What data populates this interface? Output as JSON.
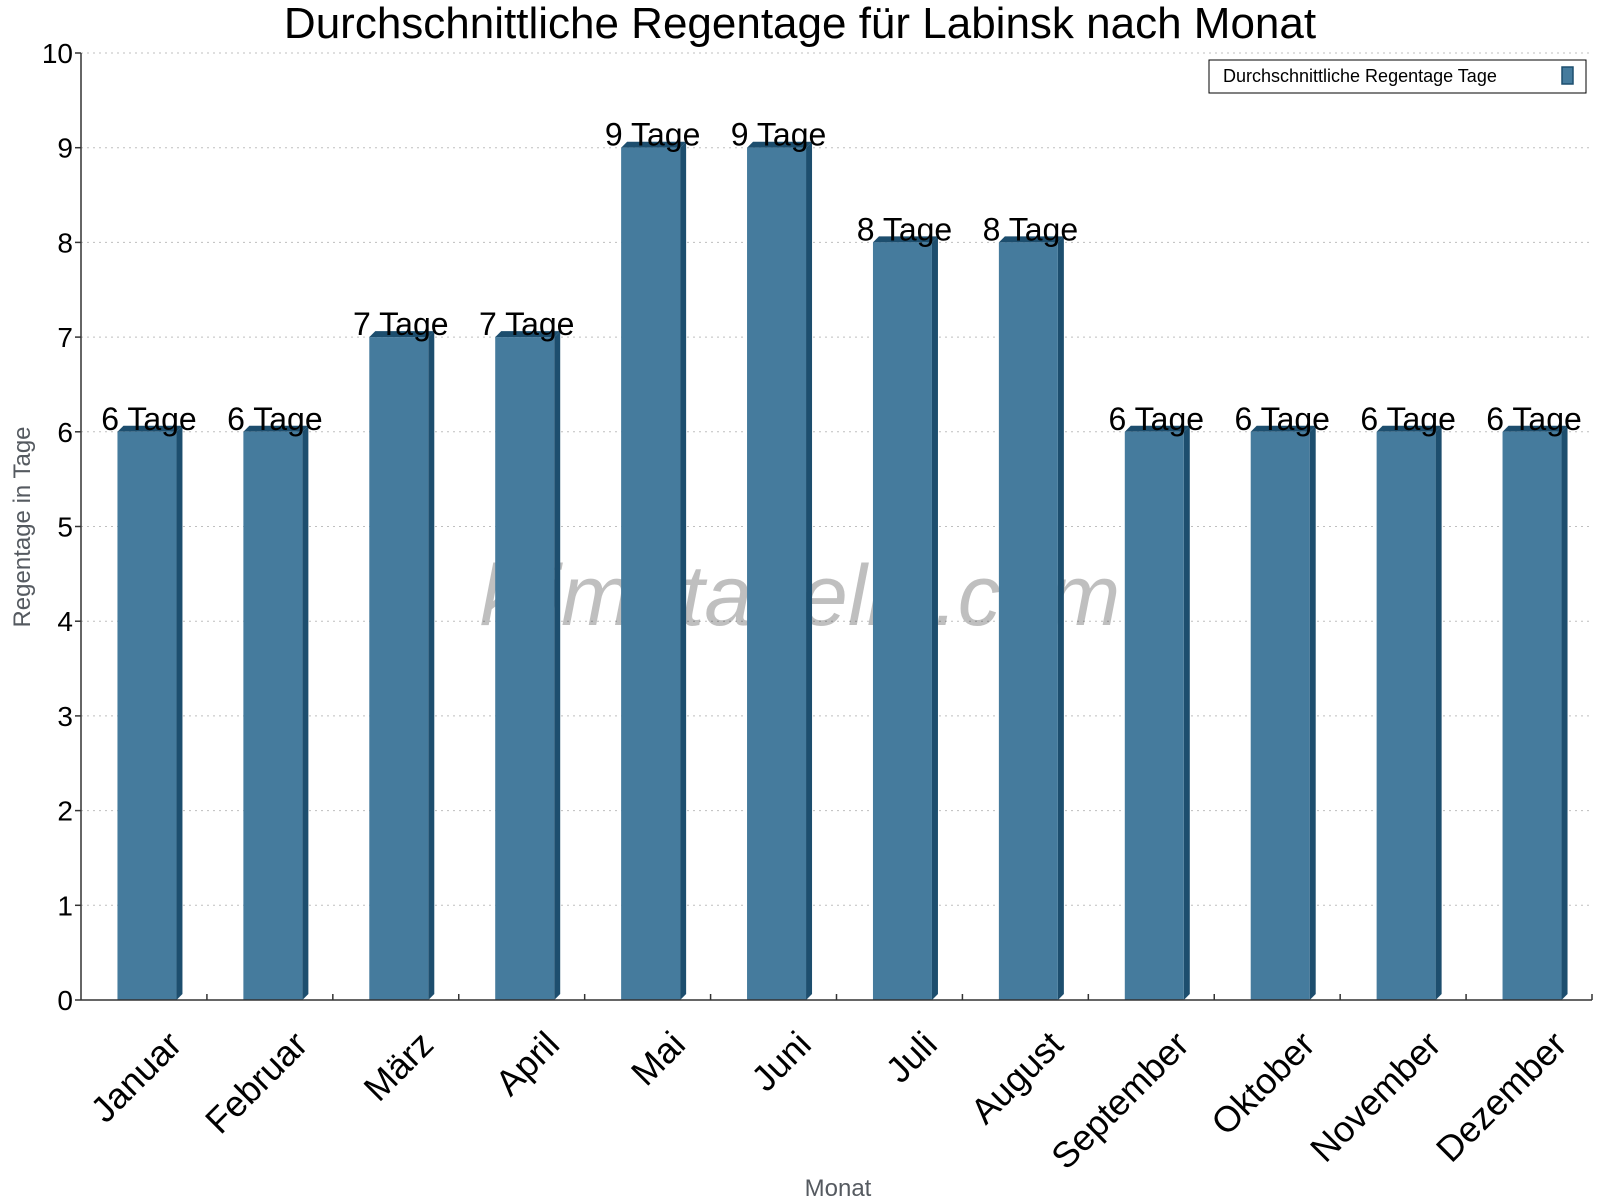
{
  "chart_data": {
    "type": "bar",
    "title": "Durchschnittliche Regentage für Labinsk nach Monat",
    "xlabel": "Monat",
    "ylabel": "Regentage in Tage",
    "ylim": [
      0,
      10
    ],
    "yticks": [
      0,
      1,
      2,
      3,
      4,
      5,
      6,
      7,
      8,
      9,
      10
    ],
    "categories": [
      "Januar",
      "Februar",
      "März",
      "April",
      "Mai",
      "Juni",
      "Juli",
      "August",
      "September",
      "Oktober",
      "November",
      "Dezember"
    ],
    "series": [
      {
        "name": "Durchschnittliche Regentage Tage",
        "values": [
          6,
          6,
          7,
          7,
          9,
          9,
          8,
          8,
          6,
          6,
          6,
          6
        ],
        "data_labels": [
          "6 Tage",
          "6 Tage",
          "7 Tage",
          "7 Tage",
          "9 Tage",
          "9 Tage",
          "8 Tage",
          "8 Tage",
          "6 Tage",
          "6 Tage",
          "6 Tage",
          "6 Tage"
        ],
        "color": "#457b9d",
        "shade_color": "#1d4e6e"
      }
    ],
    "grid": true,
    "legend_position": "top-right",
    "watermark": "klimatabelle.com"
  }
}
